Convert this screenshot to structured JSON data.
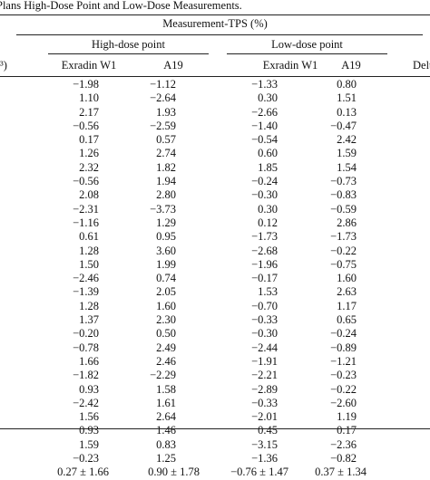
{
  "caption": "Plans High-Dose Point and Low-Dose Measurements.",
  "header": {
    "group": "Measurement-TPS (%)",
    "high_dose": "High-dose point",
    "low_dose": "Low-dose point",
    "left_fragment": "³)",
    "right_fragment": "Delt",
    "columns": [
      "Exradin W1",
      "A19",
      "Exradin W1",
      "A19"
    ]
  },
  "rows": [
    [
      "−1.98",
      "−1.12",
      "−1.33",
      "0.80"
    ],
    [
      "1.10",
      "−2.64",
      "0.30",
      "1.51"
    ],
    [
      "2.17",
      "1.93",
      "−2.66",
      "0.13"
    ],
    [
      "−0.56",
      "−2.59",
      "−1.40",
      "−0.47"
    ],
    [
      "0.17",
      "0.57",
      "−0.54",
      "2.42"
    ],
    [
      "1.26",
      "2.74",
      "0.60",
      "1.59"
    ],
    [
      "2.32",
      "1.82",
      "1.85",
      "1.54"
    ],
    [
      "−0.56",
      "1.94",
      "−0.24",
      "−0.73"
    ],
    [
      "2.08",
      "2.80",
      "−0.30",
      "−0.83"
    ],
    [
      "−2.31",
      "−3.73",
      "0.30",
      "−0.59"
    ],
    [
      "−1.16",
      "1.29",
      "0.12",
      "2.86"
    ],
    [
      "0.61",
      "0.95",
      "−1.73",
      "−1.73"
    ],
    [
      "1.28",
      "3.60",
      "−2.68",
      "−0.22"
    ],
    [
      "1.50",
      "1.99",
      "−1.96",
      "−0.75"
    ],
    [
      "−2.46",
      "0.74",
      "−0.17",
      "1.60"
    ],
    [
      "−1.39",
      "2.05",
      "1.53",
      "2.63"
    ],
    [
      "1.28",
      "1.60",
      "−0.70",
      "1.17"
    ],
    [
      "1.37",
      "2.30",
      "−0.33",
      "0.65"
    ],
    [
      "−0.20",
      "0.50",
      "−0.30",
      "−0.24"
    ],
    [
      "−0.78",
      "2.49",
      "−2.44",
      "−0.89"
    ],
    [
      "1.66",
      "2.46",
      "−1.91",
      "−1.21"
    ],
    [
      "−1.82",
      "−2.29",
      "−2.21",
      "−0.23"
    ],
    [
      "0.93",
      "1.58",
      "−2.89",
      "−0.22"
    ],
    [
      "−2.42",
      "1.61",
      "−0.33",
      "−2.60"
    ],
    [
      "1.56",
      "2.64",
      "−2.01",
      "1.19"
    ],
    [
      "0.93",
      "1.46",
      "0.45",
      "0.17"
    ],
    [
      "1.59",
      "0.83",
      "−3.15",
      "−2.36"
    ],
    [
      "−0.23",
      "1.25",
      "−1.36",
      "−0.82"
    ]
  ],
  "summary": [
    "0.27 ± 1.66",
    "0.90 ± 1.78",
    "−0.76 ± 1.47",
    "0.37 ± 1.34"
  ]
}
